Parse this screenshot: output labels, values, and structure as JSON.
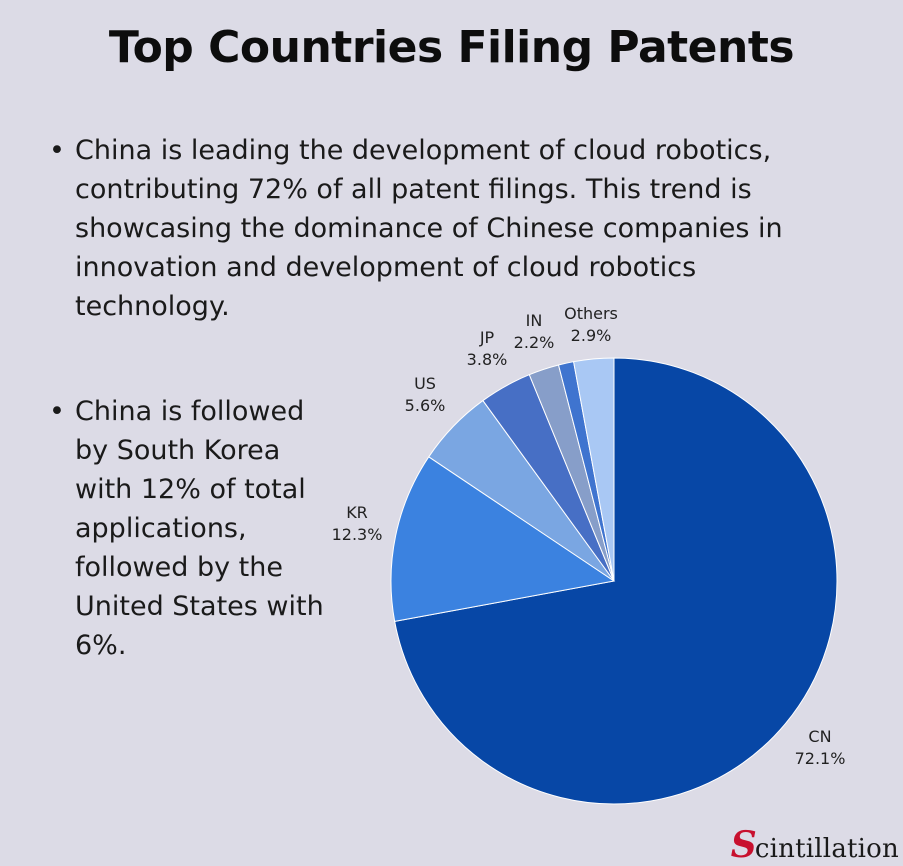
{
  "title": "Top Countries Filing Patents",
  "bullets": [
    "China is leading the development of cloud robotics, contributing 72% of all patent filings. This trend is showcasing the dominance of Chinese companies in innovation and development of cloud robotics technology.",
    "China is followed by South Korea with 12% of total applications, followed by the United States with 6%."
  ],
  "brand": {
    "first_letter": "S",
    "rest": "cintillation"
  },
  "chart_data": {
    "type": "pie",
    "title": "",
    "start": "12 o'clock",
    "direction": "clockwise",
    "slices": [
      {
        "label": "CN",
        "value": 72.1,
        "display": "72.1%",
        "color": "#0747a6"
      },
      {
        "label": "KR",
        "value": 12.3,
        "display": "12.3%",
        "color": "#3b82e0"
      },
      {
        "label": "US",
        "value": 5.6,
        "display": "5.6%",
        "color": "#7aa6e2"
      },
      {
        "label": "JP",
        "value": 3.8,
        "display": "3.8%",
        "color": "#476fc5"
      },
      {
        "label": "IN",
        "value": 2.2,
        "display": "2.2%",
        "color": "#879ec9"
      },
      {
        "label": "",
        "value": 1.1,
        "display": "",
        "color": "#3f74cf"
      },
      {
        "label": "Others",
        "value": 2.9,
        "display": "2.9%",
        "color": "#a9c8f4"
      }
    ]
  }
}
